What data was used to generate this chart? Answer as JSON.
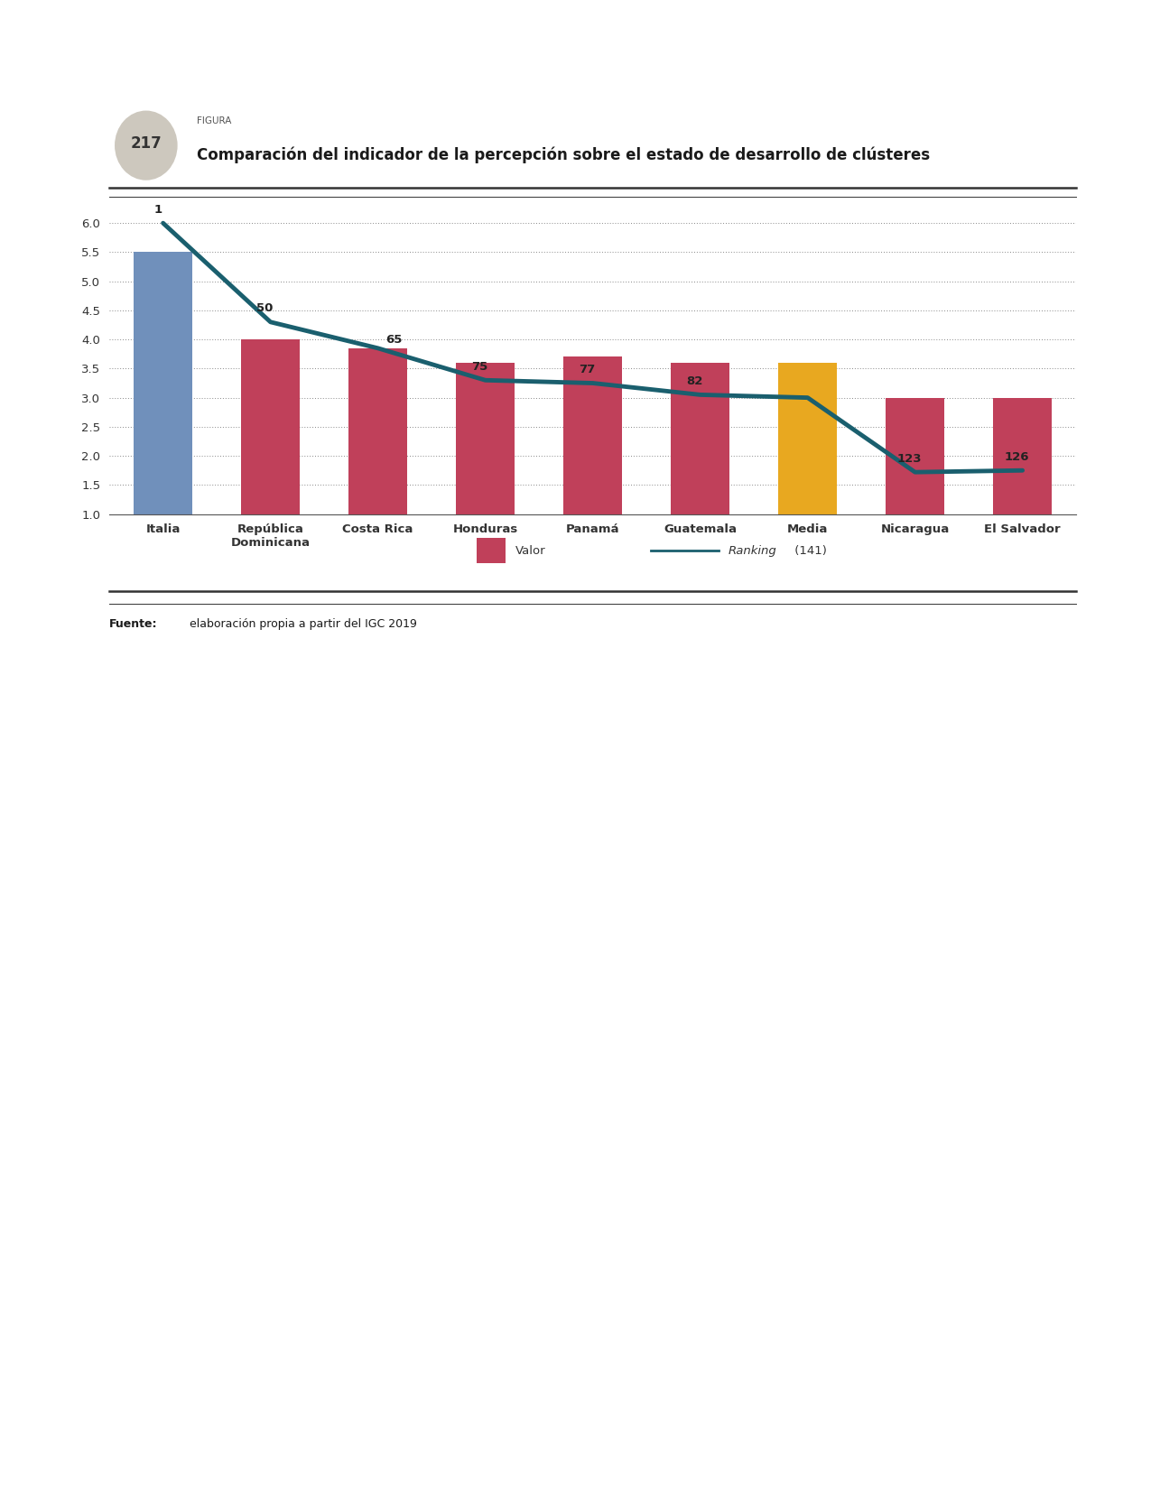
{
  "categories": [
    "Italia",
    "República\nDominicana",
    "Costa Rica",
    "Honduras",
    "Panamá",
    "Guatemala",
    "Media",
    "Nicaragua",
    "El Salvador"
  ],
  "bar_values": [
    5.5,
    4.0,
    3.85,
    3.6,
    3.7,
    3.6,
    3.6,
    3.0,
    3.0
  ],
  "bar_colors": [
    "#7090bb",
    "#c0405a",
    "#c0405a",
    "#c0405a",
    "#c0405a",
    "#c0405a",
    "#e8a820",
    "#c0405a",
    "#c0405a"
  ],
  "ranking_y_values": [
    6.0,
    4.3,
    3.85,
    3.3,
    3.25,
    3.05,
    3.0,
    1.72,
    1.75
  ],
  "line_color": "#1a5f6e",
  "ylim": [
    1.0,
    6.3
  ],
  "yticks": [
    1.0,
    1.5,
    2.0,
    2.5,
    3.0,
    3.5,
    4.0,
    4.5,
    5.0,
    5.5,
    6.0
  ],
  "title_number": "217",
  "title_label": "FIGURA",
  "title_main": "Comparación del indicador de la percepción sobre el estado de desarrollo de clústeres",
  "legend_bar_label": "Valor",
  "legend_line_label": "Ranking (141)",
  "source_text": "Fuente: elaboración propia a partir del IGC 2019",
  "background_color": "#ffffff",
  "ranking_labels": [
    "1",
    "50",
    "65",
    "75",
    "77",
    "82",
    "123",
    "126"
  ],
  "ranking_label_indices": [
    0,
    1,
    2,
    3,
    4,
    5,
    7,
    8
  ],
  "badge_color": "#cdc8be",
  "top_line_color": "#333333",
  "grid_color": "#888888",
  "tick_label_color": "#333333"
}
